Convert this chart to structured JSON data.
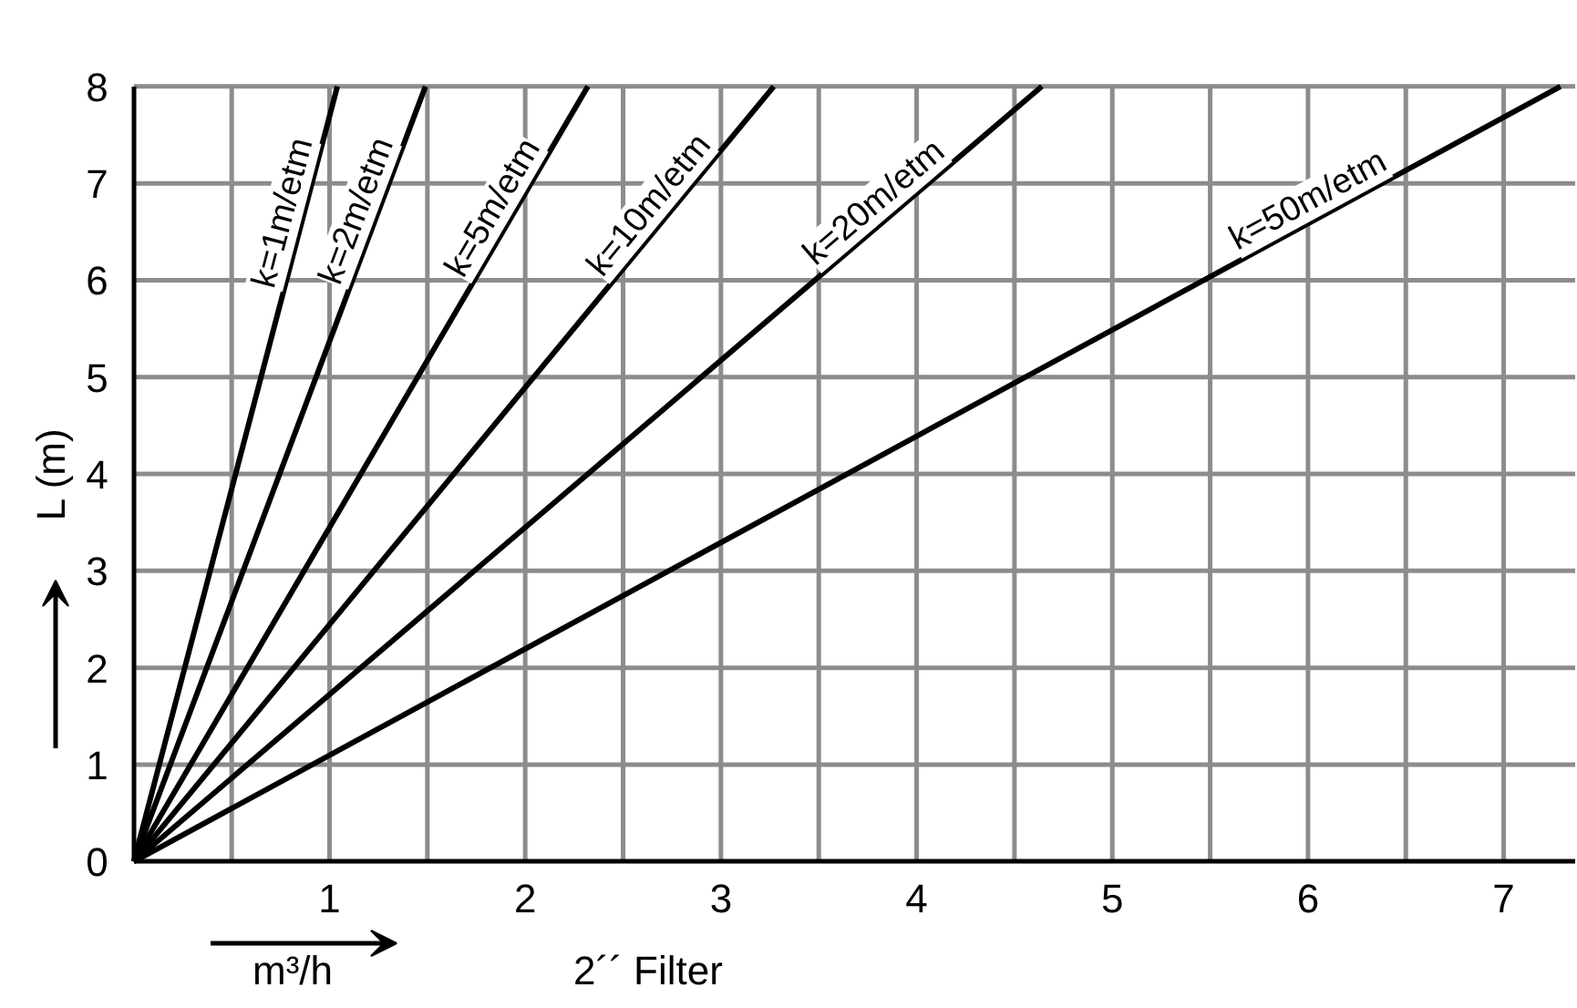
{
  "chart_data": {
    "type": "line",
    "xlabel": "m³/h",
    "ylabel": "L (m)",
    "annotations": [
      "2´´ Filter"
    ],
    "xlim": [
      0,
      7.37
    ],
    "ylim": [
      0,
      8
    ],
    "xticks": [
      {
        "value": 0,
        "label": null
      },
      {
        "value": 0.5,
        "label": null
      },
      1,
      {
        "value": 1.5,
        "label": null
      },
      2,
      {
        "value": 2.5,
        "label": null
      },
      3,
      {
        "value": 3.5,
        "label": null
      },
      4,
      {
        "value": 4.5,
        "label": null
      },
      5,
      {
        "value": 5.5,
        "label": null
      },
      6,
      {
        "value": 6.5,
        "label": null
      },
      7
    ],
    "yticks": [
      0,
      1,
      2,
      3,
      4,
      5,
      6,
      7,
      8
    ],
    "grid": true,
    "marker": "none",
    "line_style": "solid",
    "series": [
      {
        "name": "k=1m/etm",
        "color": "#000000",
        "x": [
          0,
          1.04
        ],
        "values": [
          0,
          8
        ]
      },
      {
        "name": "k=2m/etm",
        "color": "#000000",
        "x": [
          0,
          1.49
        ],
        "values": [
          0,
          8
        ]
      },
      {
        "name": "k=5m/etm",
        "color": "#000000",
        "x": [
          0,
          2.32
        ],
        "values": [
          0,
          8
        ]
      },
      {
        "name": "k=10m/etm",
        "color": "#000000",
        "x": [
          0,
          3.27
        ],
        "values": [
          0,
          8
        ]
      },
      {
        "name": "k=20m/etm",
        "color": "#000000",
        "x": [
          0,
          4.64
        ],
        "values": [
          0,
          8
        ]
      },
      {
        "name": "k=50m/etm",
        "color": "#000000",
        "x": [
          0,
          7.29
        ],
        "values": [
          0,
          8
        ]
      }
    ]
  }
}
